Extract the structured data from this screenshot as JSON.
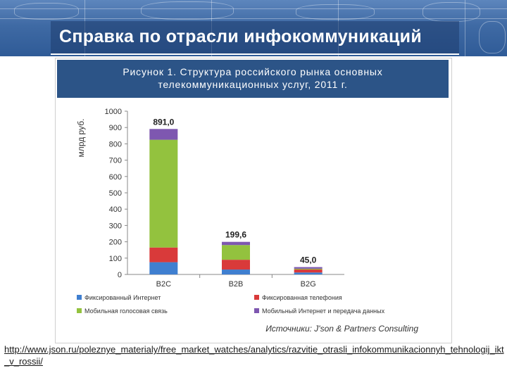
{
  "slide": {
    "title": "Справка по отрасли инфокоммуникаций",
    "url": "http://www.json.ru/poleznye_materialy/free_market_watches/analytics/razvitie_otrasli_infokommunikacionnyh_tehnologij_ikt_v_rossii/"
  },
  "figure": {
    "title_line1": "Рисунок 1. Структура российского рынка основных",
    "title_line2": "телекоммуникационных услуг, 2011 г.",
    "source": "Источники: J'son & Partners Consulting"
  },
  "chart_data": {
    "type": "bar",
    "stacked": true,
    "categories": [
      "B2C",
      "B2B",
      "B2G"
    ],
    "ylabel": "млрд руб.",
    "ylim": [
      0,
      1000
    ],
    "yticks": [
      0,
      100,
      200,
      300,
      400,
      500,
      600,
      700,
      800,
      900,
      1000
    ],
    "totals": [
      "891,0",
      "199,6",
      "45,0"
    ],
    "series": [
      {
        "name": "Фиксированный Интернет",
        "color": "#3f7fd0",
        "values": [
          75,
          30,
          12
        ]
      },
      {
        "name": "Фиксированная телефония",
        "color": "#d93a3a",
        "values": [
          90,
          60,
          18
        ]
      },
      {
        "name": "Мобильная голосовая связь",
        "color": "#93c23e",
        "values": [
          660,
          90,
          5
        ]
      },
      {
        "name": "Мобильный Интернет и передача данных",
        "color": "#7e57b0",
        "values": [
          66,
          19.6,
          10
        ]
      }
    ],
    "legend": "bottom",
    "grid": false
  }
}
